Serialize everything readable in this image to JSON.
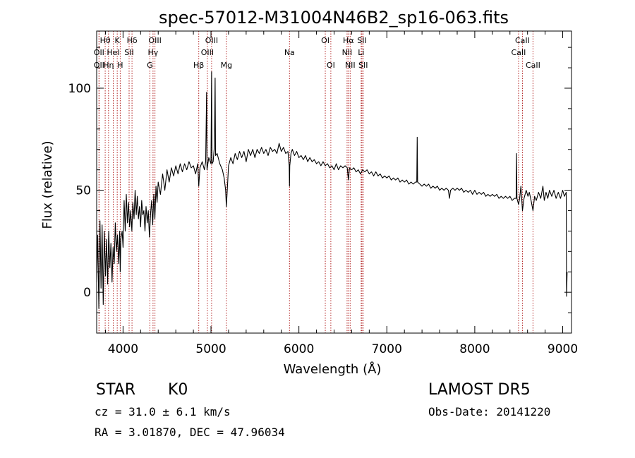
{
  "chart_data": {
    "type": "line",
    "title": "spec-57012-M31004N46B2_sp16-063.fits",
    "xlabel": "Wavelength (Å)",
    "ylabel": "Flux (relative)",
    "xlim": [
      3700,
      9100
    ],
    "ylim": [
      -20,
      128
    ],
    "xticks": [
      4000,
      5000,
      6000,
      7000,
      8000,
      9000
    ],
    "yticks": [
      0,
      50,
      100
    ],
    "line_color": "#000000",
    "marker_color": "#b22222",
    "spectrum": [
      [
        3700,
        5
      ],
      [
        3712,
        28
      ],
      [
        3725,
        -8
      ],
      [
        3738,
        35
      ],
      [
        3750,
        2
      ],
      [
        3762,
        33
      ],
      [
        3775,
        -6
      ],
      [
        3787,
        30
      ],
      [
        3800,
        8
      ],
      [
        3812,
        26
      ],
      [
        3825,
        4
      ],
      [
        3837,
        30
      ],
      [
        3850,
        12
      ],
      [
        3862,
        24
      ],
      [
        3875,
        5
      ],
      [
        3887,
        22
      ],
      [
        3900,
        14
      ],
      [
        3912,
        34
      ],
      [
        3925,
        20
      ],
      [
        3937,
        28
      ],
      [
        3950,
        14
      ],
      [
        3962,
        30
      ],
      [
        3968,
        10
      ],
      [
        3975,
        26
      ],
      [
        3990,
        30
      ],
      [
        4000,
        22
      ],
      [
        4012,
        45
      ],
      [
        4025,
        30
      ],
      [
        4037,
        48
      ],
      [
        4050,
        34
      ],
      [
        4062,
        44
      ],
      [
        4075,
        32
      ],
      [
        4087,
        40
      ],
      [
        4100,
        30
      ],
      [
        4112,
        44
      ],
      [
        4125,
        36
      ],
      [
        4137,
        50
      ],
      [
        4150,
        38
      ],
      [
        4162,
        47
      ],
      [
        4175,
        36
      ],
      [
        4187,
        42
      ],
      [
        4200,
        32
      ],
      [
        4212,
        45
      ],
      [
        4225,
        38
      ],
      [
        4237,
        40
      ],
      [
        4250,
        30
      ],
      [
        4262,
        42
      ],
      [
        4275,
        34
      ],
      [
        4287,
        40
      ],
      [
        4300,
        27
      ],
      [
        4312,
        38
      ],
      [
        4325,
        45
      ],
      [
        4337,
        33
      ],
      [
        4350,
        48
      ],
      [
        4362,
        36
      ],
      [
        4375,
        52
      ],
      [
        4387,
        44
      ],
      [
        4400,
        54
      ],
      [
        4425,
        48
      ],
      [
        4450,
        58
      ],
      [
        4475,
        50
      ],
      [
        4500,
        60
      ],
      [
        4525,
        54
      ],
      [
        4550,
        61
      ],
      [
        4575,
        57
      ],
      [
        4600,
        62
      ],
      [
        4625,
        58
      ],
      [
        4650,
        63
      ],
      [
        4675,
        59
      ],
      [
        4700,
        63
      ],
      [
        4725,
        60
      ],
      [
        4750,
        64
      ],
      [
        4775,
        61
      ],
      [
        4800,
        62
      ],
      [
        4825,
        58
      ],
      [
        4850,
        63
      ],
      [
        4861,
        52
      ],
      [
        4875,
        61
      ],
      [
        4900,
        64
      ],
      [
        4925,
        60
      ],
      [
        4940,
        64
      ],
      [
        4950,
        98
      ],
      [
        4955,
        60
      ],
      [
        4975,
        66
      ],
      [
        5000,
        63
      ],
      [
        5007,
        108
      ],
      [
        5012,
        63
      ],
      [
        5025,
        64
      ],
      [
        5040,
        72
      ],
      [
        5047,
        105
      ],
      [
        5052,
        67
      ],
      [
        5070,
        68
      ],
      [
        5100,
        63
      ],
      [
        5130,
        60
      ],
      [
        5150,
        56
      ],
      [
        5167,
        50
      ],
      [
        5175,
        42
      ],
      [
        5183,
        48
      ],
      [
        5200,
        62
      ],
      [
        5225,
        66
      ],
      [
        5250,
        63
      ],
      [
        5275,
        68
      ],
      [
        5300,
        65
      ],
      [
        5325,
        69
      ],
      [
        5350,
        66
      ],
      [
        5375,
        69
      ],
      [
        5400,
        64
      ],
      [
        5425,
        70
      ],
      [
        5450,
        67
      ],
      [
        5475,
        70
      ],
      [
        5500,
        66
      ],
      [
        5525,
        70
      ],
      [
        5550,
        68
      ],
      [
        5575,
        71
      ],
      [
        5600,
        68
      ],
      [
        5625,
        70
      ],
      [
        5650,
        67
      ],
      [
        5675,
        71
      ],
      [
        5700,
        69
      ],
      [
        5725,
        70
      ],
      [
        5750,
        68
      ],
      [
        5775,
        73
      ],
      [
        5800,
        69
      ],
      [
        5825,
        71
      ],
      [
        5850,
        68
      ],
      [
        5875,
        69
      ],
      [
        5890,
        62
      ],
      [
        5893,
        52
      ],
      [
        5896,
        62
      ],
      [
        5910,
        68
      ],
      [
        5925,
        70
      ],
      [
        5950,
        67
      ],
      [
        5975,
        69
      ],
      [
        6000,
        66
      ],
      [
        6025,
        67
      ],
      [
        6050,
        65
      ],
      [
        6075,
        67
      ],
      [
        6100,
        64
      ],
      [
        6125,
        66
      ],
      [
        6150,
        64
      ],
      [
        6175,
        65
      ],
      [
        6200,
        63
      ],
      [
        6225,
        64
      ],
      [
        6250,
        62
      ],
      [
        6275,
        64
      ],
      [
        6300,
        62
      ],
      [
        6325,
        63
      ],
      [
        6350,
        61
      ],
      [
        6375,
        62
      ],
      [
        6400,
        60
      ],
      [
        6425,
        63
      ],
      [
        6450,
        60
      ],
      [
        6475,
        62
      ],
      [
        6500,
        61
      ],
      [
        6525,
        62
      ],
      [
        6550,
        61
      ],
      [
        6563,
        55
      ],
      [
        6575,
        61
      ],
      [
        6600,
        60
      ],
      [
        6625,
        61
      ],
      [
        6650,
        59
      ],
      [
        6675,
        60
      ],
      [
        6700,
        58
      ],
      [
        6725,
        60
      ],
      [
        6750,
        59
      ],
      [
        6775,
        60
      ],
      [
        6800,
        58
      ],
      [
        6825,
        59
      ],
      [
        6850,
        57
      ],
      [
        6875,
        59
      ],
      [
        6900,
        57
      ],
      [
        6925,
        58
      ],
      [
        6950,
        56
      ],
      [
        6975,
        57
      ],
      [
        7000,
        56
      ],
      [
        7025,
        57
      ],
      [
        7050,
        55
      ],
      [
        7075,
        56
      ],
      [
        7100,
        55
      ],
      [
        7125,
        56
      ],
      [
        7150,
        54
      ],
      [
        7175,
        55
      ],
      [
        7200,
        54
      ],
      [
        7225,
        55
      ],
      [
        7250,
        53
      ],
      [
        7275,
        54
      ],
      [
        7300,
        53
      ],
      [
        7325,
        54
      ],
      [
        7340,
        54
      ],
      [
        7345,
        76
      ],
      [
        7350,
        54
      ],
      [
        7375,
        53
      ],
      [
        7400,
        52
      ],
      [
        7425,
        53
      ],
      [
        7450,
        52
      ],
      [
        7475,
        53
      ],
      [
        7500,
        51
      ],
      [
        7525,
        52
      ],
      [
        7550,
        51
      ],
      [
        7575,
        52
      ],
      [
        7600,
        50
      ],
      [
        7625,
        51
      ],
      [
        7650,
        50
      ],
      [
        7675,
        51
      ],
      [
        7700,
        50
      ],
      [
        7712,
        46
      ],
      [
        7725,
        50
      ],
      [
        7750,
        51
      ],
      [
        7775,
        50
      ],
      [
        7800,
        51
      ],
      [
        7825,
        50
      ],
      [
        7850,
        51
      ],
      [
        7875,
        49
      ],
      [
        7900,
        50
      ],
      [
        7925,
        49
      ],
      [
        7950,
        50
      ],
      [
        7975,
        48
      ],
      [
        8000,
        50
      ],
      [
        8025,
        48
      ],
      [
        8050,
        49
      ],
      [
        8075,
        48
      ],
      [
        8100,
        49
      ],
      [
        8125,
        47
      ],
      [
        8150,
        48
      ],
      [
        8175,
        47
      ],
      [
        8200,
        48
      ],
      [
        8225,
        47
      ],
      [
        8250,
        48
      ],
      [
        8275,
        46
      ],
      [
        8300,
        47
      ],
      [
        8325,
        46
      ],
      [
        8350,
        47
      ],
      [
        8375,
        46
      ],
      [
        8400,
        47
      ],
      [
        8425,
        45
      ],
      [
        8450,
        46
      ],
      [
        8470,
        46
      ],
      [
        8475,
        68
      ],
      [
        8480,
        46
      ],
      [
        8498,
        43
      ],
      [
        8510,
        46
      ],
      [
        8525,
        52
      ],
      [
        8542,
        40
      ],
      [
        8560,
        46
      ],
      [
        8585,
        50
      ],
      [
        8605,
        47
      ],
      [
        8620,
        49
      ],
      [
        8640,
        45
      ],
      [
        8662,
        40
      ],
      [
        8680,
        47
      ],
      [
        8700,
        45
      ],
      [
        8725,
        49
      ],
      [
        8750,
        46
      ],
      [
        8775,
        52
      ],
      [
        8790,
        45
      ],
      [
        8810,
        49
      ],
      [
        8830,
        46
      ],
      [
        8850,
        50
      ],
      [
        8875,
        47
      ],
      [
        8900,
        50
      ],
      [
        8925,
        46
      ],
      [
        8950,
        49
      ],
      [
        8975,
        46
      ],
      [
        9000,
        50
      ],
      [
        9020,
        47
      ],
      [
        9040,
        49
      ],
      [
        9044,
        -2
      ],
      [
        9050,
        10
      ]
    ],
    "lines": [
      {
        "name": "Hθ",
        "wavelength": 3797,
        "row": 0
      },
      {
        "name": "K",
        "wavelength": 3934,
        "row": 0
      },
      {
        "name": "Hδ",
        "wavelength": 4102,
        "row": 0
      },
      {
        "name": "OIII",
        "wavelength": 4363,
        "row": 0
      },
      {
        "name": "OII",
        "wavelength": 3727,
        "row": 1
      },
      {
        "name": "HeI",
        "wavelength": 3889,
        "row": 1
      },
      {
        "name": "SII",
        "wavelength": 4069,
        "row": 1
      },
      {
        "name": "Hγ",
        "wavelength": 4341,
        "row": 1
      },
      {
        "name": "OII",
        "wavelength": 3727,
        "row": 2
      },
      {
        "name": "Hη",
        "wavelength": 3835,
        "row": 2
      },
      {
        "name": "H",
        "wavelength": 3968,
        "row": 2
      },
      {
        "name": "G",
        "wavelength": 4305,
        "row": 2
      },
      {
        "name": "OIII",
        "wavelength": 5007,
        "row": 0
      },
      {
        "name": "OIII",
        "wavelength": 4959,
        "row": 1
      },
      {
        "name": "Hβ",
        "wavelength": 4861,
        "row": 2
      },
      {
        "name": "Mg",
        "wavelength": 5175,
        "row": 2
      },
      {
        "name": "Na",
        "wavelength": 5893,
        "row": 1
      },
      {
        "name": "OI",
        "wavelength": 6300,
        "row": 0
      },
      {
        "name": "OI",
        "wavelength": 6363,
        "row": 2
      },
      {
        "name": "Hα",
        "wavelength": 6563,
        "row": 0
      },
      {
        "name": "SII",
        "wavelength": 6717,
        "row": 0
      },
      {
        "name": "NII",
        "wavelength": 6548,
        "row": 1
      },
      {
        "name": "Li",
        "wavelength": 6708,
        "row": 1
      },
      {
        "name": "NII",
        "wavelength": 6583,
        "row": 2
      },
      {
        "name": "SII",
        "wavelength": 6731,
        "row": 2
      },
      {
        "name": "CaII",
        "wavelength": 8542,
        "row": 0
      },
      {
        "name": "CaII",
        "wavelength": 8498,
        "row": 1
      },
      {
        "name": "CaII",
        "wavelength": 8662,
        "row": 2
      }
    ]
  },
  "info": {
    "class_label": "STAR",
    "subclass": "K0",
    "survey": "LAMOST  DR5",
    "velocity": "cz = 31.0 ± 6.1 km/s",
    "obs_date": "Obs-Date: 20141220",
    "coords": "RA =    3.01870, DEC =  47.96034"
  }
}
